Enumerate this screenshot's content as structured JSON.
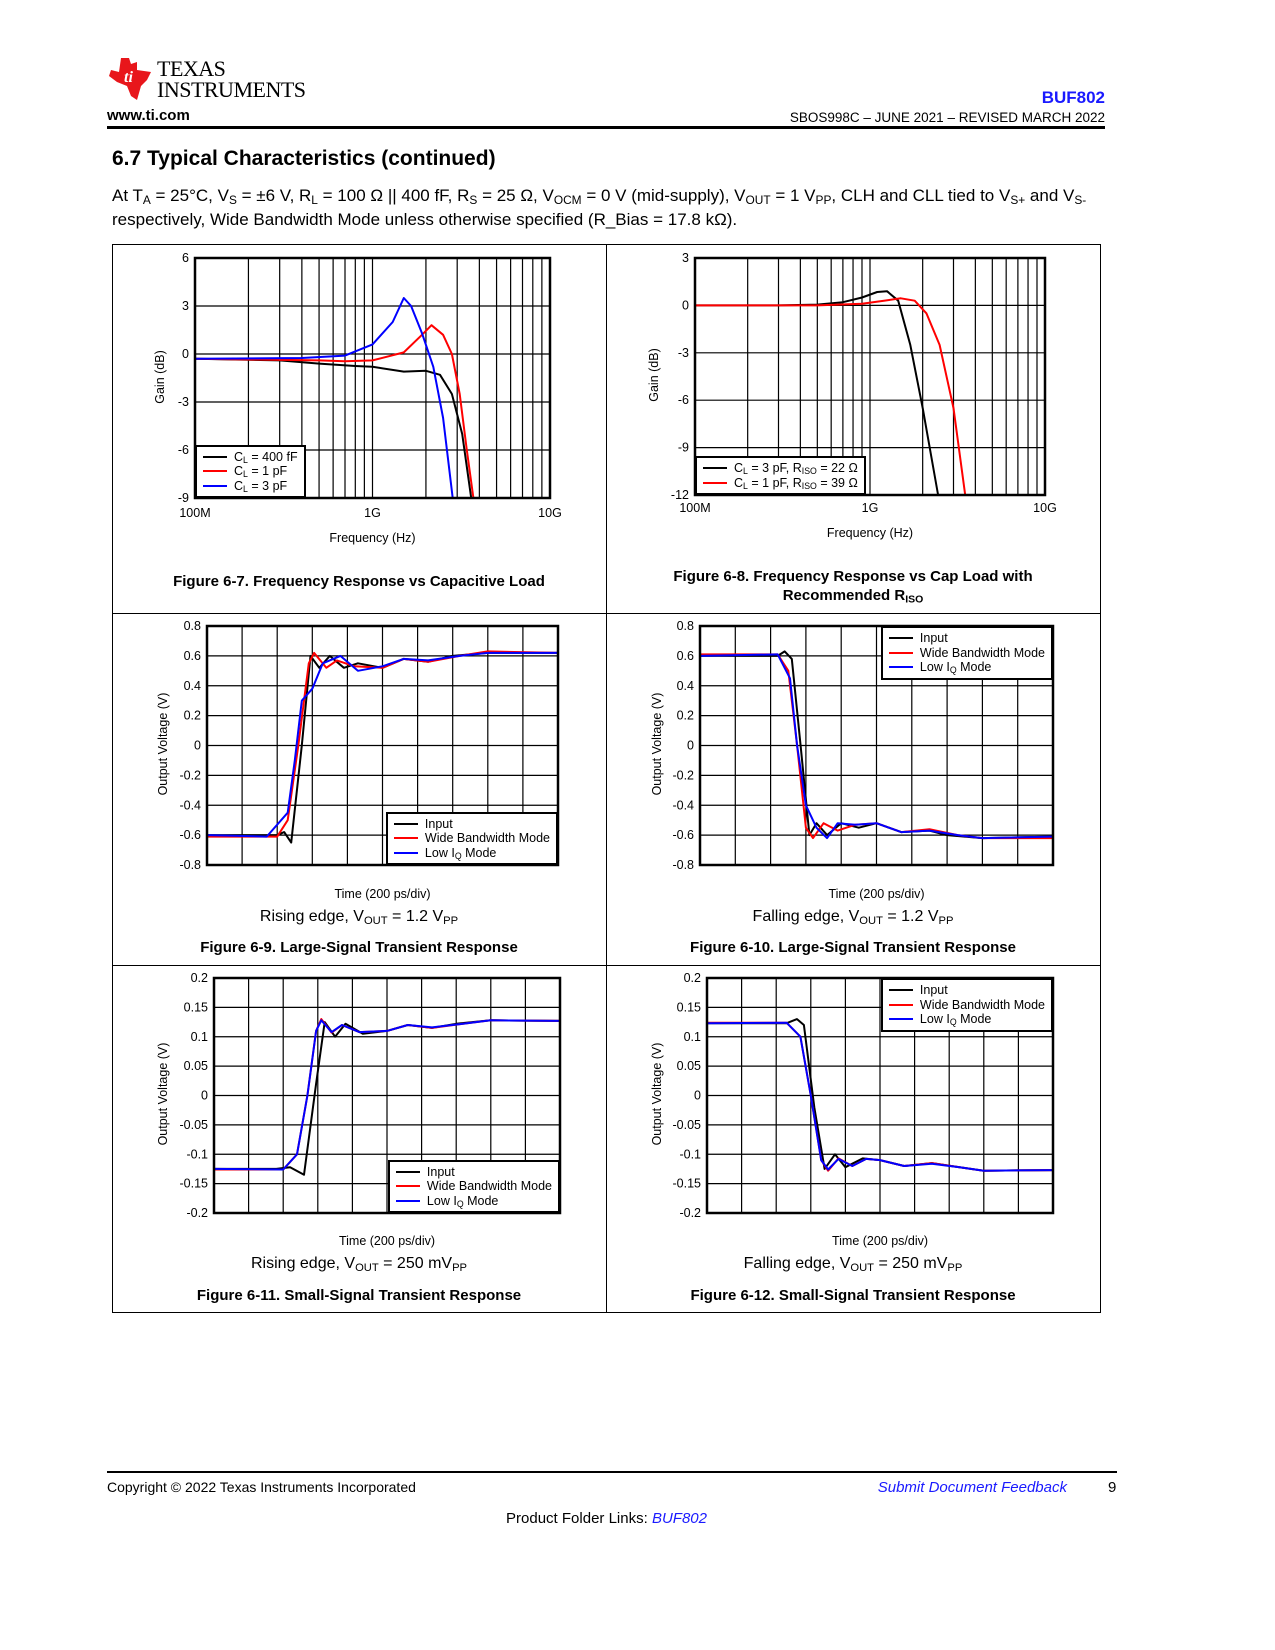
{
  "header": {
    "logo_text_1": "Texas",
    "logo_text_2": "Instruments",
    "website": "www.ti.com",
    "part_number": "BUF802",
    "doc_info": "SBOS998C – JUNE 2021 – REVISED MARCH 2022"
  },
  "section_title": "6.7 Typical Characteristics (continued)",
  "conditions_parts": [
    "At T",
    "A",
    " = 25°C, V",
    "S",
    " = ±6 V, R",
    "L",
    " = 100 Ω || 400 fF, R",
    "S",
    " = 25 Ω, V",
    "OCM",
    " = 0 V (mid-supply), V",
    "OUT",
    " = 1 V",
    "PP",
    ", CLH and CLL tied to V",
    "S+",
    " and V",
    "S-",
    " respectively, Wide Bandwidth Mode unless otherwise specified (R_Bias = 17.8 kΩ)."
  ],
  "chart_data": [
    {
      "type": "line",
      "title": "Figure 6-7. Frequency Response vs Capacitive Load",
      "xlabel": "Frequency (Hz)",
      "ylabel": "Gain (dB)",
      "xscale": "log",
      "xlim_mhz": [
        100,
        10000
      ],
      "ylim": [
        -9,
        6
      ],
      "grid": true,
      "xtick_values_mhz": [
        100,
        1000,
        10000
      ],
      "xtick_labels": [
        "100M",
        "1G",
        "10G"
      ],
      "ytick_values": [
        6,
        3,
        0,
        -3,
        -6,
        -9
      ],
      "ytick_labels": [
        "6",
        "3",
        "0",
        "-3",
        "-6",
        "-9"
      ],
      "legend_position": "bottom-left",
      "series": [
        {
          "label_parts": [
            "C",
            "L",
            " = 400 fF"
          ],
          "color": "#000000",
          "x": [
            100,
            300,
            500,
            800,
            1000,
            1500,
            2000,
            2400,
            2800,
            3200,
            3600
          ],
          "y": [
            -0.3,
            -0.4,
            -0.6,
            -0.75,
            -0.8,
            -1.1,
            -1.05,
            -1.3,
            -2.5,
            -5,
            -9
          ]
        },
        {
          "label_parts": [
            "C",
            "L",
            " = 1 pF"
          ],
          "color": "#ff0000",
          "x": [
            100,
            500,
            700,
            1000,
            1500,
            1900,
            2150,
            2500,
            2800,
            3100,
            3400,
            3700
          ],
          "y": [
            -0.3,
            -0.4,
            -0.45,
            -0.4,
            0.1,
            1.2,
            1.8,
            1.2,
            0,
            -2.5,
            -6,
            -9
          ]
        },
        {
          "label_parts": [
            "C",
            "L",
            " = 3 pF"
          ],
          "color": "#0000ff",
          "x": [
            100,
            400,
            700,
            1000,
            1300,
            1500,
            1650,
            1900,
            2200,
            2500,
            2830
          ],
          "y": [
            -0.3,
            -0.25,
            -0.1,
            0.6,
            2,
            3.5,
            3,
            1.3,
            -0.8,
            -4,
            -9
          ]
        }
      ]
    },
    {
      "type": "line",
      "title": "Figure 6-8. Frequency Response vs Cap Load with Recommended R",
      "title_sub": "ISO",
      "xlabel": "Frequency (Hz)",
      "ylabel": "Gain (dB)",
      "xscale": "log",
      "xlim_mhz": [
        100,
        10000
      ],
      "ylim": [
        -12,
        3
      ],
      "grid": true,
      "xtick_values_mhz": [
        100,
        1000,
        10000
      ],
      "xtick_labels": [
        "100M",
        "1G",
        "10G"
      ],
      "ytick_values": [
        3,
        0,
        -3,
        -6,
        -9,
        -12
      ],
      "ytick_labels": [
        "3",
        "0",
        "-3",
        "-6",
        "-9",
        "-12"
      ],
      "legend_position": "bottom-left",
      "series": [
        {
          "label_parts": [
            "C",
            "L",
            " = 3 pF, R",
            "ISO",
            " = 22 Ω"
          ],
          "color": "#000000",
          "x": [
            100,
            300,
            500,
            700,
            900,
            1100,
            1250,
            1450,
            1700,
            2000,
            2450
          ],
          "y": [
            0,
            0,
            0.05,
            0.2,
            0.5,
            0.85,
            0.9,
            0.3,
            -2.5,
            -6.5,
            -12
          ]
        },
        {
          "label_parts": [
            "C",
            "L",
            " = 1 pF, R",
            "ISO",
            " = 39 Ω"
          ],
          "color": "#ff0000",
          "x": [
            100,
            500,
            900,
            1200,
            1500,
            1800,
            2100,
            2500,
            3000,
            3500
          ],
          "y": [
            0,
            0,
            0.1,
            0.3,
            0.45,
            0.3,
            -0.5,
            -2.5,
            -6.5,
            -12
          ]
        }
      ]
    },
    {
      "type": "line",
      "title": "Figure 6-9. Large-Signal Transient Response",
      "subtitle_parts": [
        "Rising edge, V",
        "OUT",
        " = 1.2 V",
        "PP"
      ],
      "xlabel": "Time (200 ps/div)",
      "ylabel": "Output Voltage (V)",
      "xscale": "linear",
      "xlim_div": [
        0,
        10
      ],
      "ylim": [
        -0.8,
        0.8
      ],
      "grid": true,
      "x_divisions": 10,
      "ytick_values": [
        0.8,
        0.6,
        0.4,
        0.2,
        0,
        -0.2,
        -0.4,
        -0.6,
        -0.8
      ],
      "ytick_labels": [
        "0.8",
        "0.6",
        "0.4",
        "0.2",
        "0",
        "-0.2",
        "-0.4",
        "-0.6",
        "-0.8"
      ],
      "legend_position": "bottom-right",
      "series": [
        {
          "label_parts": [
            "Input"
          ],
          "color": "#000000",
          "x": [
            0,
            2,
            2.2,
            2.4,
            2.7,
            2.95,
            3.2,
            3.5,
            3.9,
            4.3,
            5,
            5.6,
            6.3,
            7,
            8,
            10
          ],
          "y": [
            -0.6,
            -0.6,
            -0.58,
            -0.65,
            0,
            0.6,
            0.52,
            0.6,
            0.52,
            0.55,
            0.52,
            0.58,
            0.56,
            0.6,
            0.62,
            0.62
          ]
        },
        {
          "label_parts": [
            "Wide Bandwidth Mode"
          ],
          "color": "#ff0000",
          "x": [
            0,
            2,
            2.3,
            2.6,
            2.9,
            3.05,
            3.4,
            3.7,
            4.2,
            5,
            5.6,
            6.3,
            7.2,
            8,
            10
          ],
          "y": [
            -0.61,
            -0.61,
            -0.5,
            0,
            0.55,
            0.62,
            0.52,
            0.57,
            0.53,
            0.52,
            0.58,
            0.56,
            0.6,
            0.63,
            0.62
          ]
        },
        {
          "label_parts": [
            "Low I",
            "Q",
            " Mode"
          ],
          "color": "#0000ff",
          "x": [
            0,
            1.7,
            2.3,
            2.5,
            2.7,
            3,
            3.3,
            3.8,
            4.3,
            5,
            5.6,
            6.3,
            7.2,
            8,
            10
          ],
          "y": [
            -0.6,
            -0.61,
            -0.45,
            -0.1,
            0.3,
            0.38,
            0.55,
            0.6,
            0.5,
            0.53,
            0.58,
            0.57,
            0.6,
            0.62,
            0.62
          ]
        }
      ]
    },
    {
      "type": "line",
      "title": "Figure 6-10. Large-Signal Transient Response",
      "subtitle_parts": [
        "Falling edge, V",
        "OUT",
        " = 1.2 V",
        "PP"
      ],
      "xlabel": "Time (200 ps/div)",
      "ylabel": "Output Voltage (V)",
      "xscale": "linear",
      "xlim_div": [
        0,
        10
      ],
      "ylim": [
        -0.8,
        0.8
      ],
      "grid": true,
      "x_divisions": 10,
      "ytick_values": [
        0.8,
        0.6,
        0.4,
        0.2,
        0,
        -0.2,
        -0.4,
        -0.6,
        -0.8
      ],
      "ytick_labels": [
        "0.8",
        "0.6",
        "0.4",
        "0.2",
        "0",
        "-0.2",
        "-0.4",
        "-0.6",
        "-0.8"
      ],
      "legend_position": "top-right",
      "series": [
        {
          "label_parts": [
            "Input"
          ],
          "color": "#000000",
          "x": [
            0,
            2.2,
            2.4,
            2.6,
            2.85,
            3.1,
            3.3,
            3.6,
            4,
            4.5,
            5,
            5.7,
            6.5,
            7,
            8,
            10
          ],
          "y": [
            0.6,
            0.6,
            0.63,
            0.58,
            0,
            -0.6,
            -0.52,
            -0.6,
            -0.52,
            -0.55,
            -0.52,
            -0.58,
            -0.57,
            -0.6,
            -0.62,
            -0.61
          ]
        },
        {
          "label_parts": [
            "Wide Bandwidth Mode"
          ],
          "color": "#ff0000",
          "x": [
            0,
            2.2,
            2.5,
            2.75,
            3,
            3.2,
            3.5,
            3.9,
            4.4,
            5,
            5.7,
            6.5,
            7.3,
            8,
            10
          ],
          "y": [
            0.61,
            0.61,
            0.5,
            0,
            -0.55,
            -0.62,
            -0.52,
            -0.57,
            -0.53,
            -0.52,
            -0.58,
            -0.56,
            -0.6,
            -0.62,
            -0.62
          ]
        },
        {
          "label_parts": [
            "Low I",
            "Q",
            " Mode"
          ],
          "color": "#0000ff",
          "x": [
            0,
            2.2,
            2.55,
            2.75,
            3,
            3.3,
            3.6,
            3.9,
            4.4,
            5,
            5.7,
            6.5,
            7.3,
            8,
            10
          ],
          "y": [
            0.6,
            0.61,
            0.45,
            0,
            -0.4,
            -0.55,
            -0.62,
            -0.52,
            -0.53,
            -0.52,
            -0.58,
            -0.57,
            -0.6,
            -0.62,
            -0.61
          ]
        }
      ]
    },
    {
      "type": "line",
      "title": "Figure 6-11. Small-Signal Transient Response",
      "subtitle_parts": [
        "Rising edge, V",
        "OUT",
        " = 250 mV",
        "PP"
      ],
      "xlabel": "Time (200 ps/div)",
      "ylabel": "Output Voltage (V)",
      "xscale": "linear",
      "xlim_div": [
        0,
        10
      ],
      "ylim": [
        -0.2,
        0.2
      ],
      "grid": true,
      "x_divisions": 10,
      "ytick_values": [
        0.2,
        0.15,
        0.1,
        0.05,
        0,
        -0.05,
        -0.1,
        -0.15,
        -0.2
      ],
      "ytick_labels": [
        "0.2",
        "0.15",
        "0.1",
        "0.05",
        "0",
        "-0.05",
        "-0.1",
        "-0.15",
        "-0.2"
      ],
      "legend_position": "bottom-right",
      "series": [
        {
          "label_parts": [
            "Input"
          ],
          "color": "#000000",
          "x": [
            0,
            1.8,
            2.2,
            2.6,
            2.95,
            3.2,
            3.5,
            3.8,
            4.3,
            5,
            5.6,
            6.3,
            7,
            8,
            10
          ],
          "y": [
            -0.125,
            -0.125,
            -0.122,
            -0.135,
            0.02,
            0.125,
            0.1,
            0.122,
            0.105,
            0.11,
            0.12,
            0.115,
            0.122,
            0.128,
            0.127
          ]
        },
        {
          "label_parts": [
            "Wide Bandwidth Mode"
          ],
          "color": "#ff0000",
          "x": [
            0,
            2,
            2.4,
            2.7,
            2.95,
            3.1,
            3.4,
            3.7,
            4.2,
            5,
            5.6,
            6.3,
            7.2,
            8,
            10
          ],
          "y": [
            -0.126,
            -0.126,
            -0.1,
            0,
            0.11,
            0.13,
            0.107,
            0.12,
            0.108,
            0.11,
            0.12,
            0.115,
            0.122,
            0.128,
            0.127
          ]
        },
        {
          "label_parts": [
            "Low I",
            "Q",
            " Mode"
          ],
          "color": "#0000ff",
          "x": [
            0,
            2,
            2.4,
            2.7,
            2.95,
            3.1,
            3.4,
            3.7,
            4.2,
            5,
            5.6,
            6.3,
            7.2,
            8,
            10
          ],
          "y": [
            -0.125,
            -0.126,
            -0.1,
            0,
            0.11,
            0.128,
            0.108,
            0.12,
            0.108,
            0.11,
            0.12,
            0.116,
            0.122,
            0.128,
            0.127
          ]
        }
      ]
    },
    {
      "type": "line",
      "title": "Figure 6-12. Small-Signal Transient Response",
      "subtitle_parts": [
        "Falling edge, V",
        "OUT",
        " = 250 mV",
        "PP"
      ],
      "xlabel": "Time (200 ps/div)",
      "ylabel": "Output Voltage (V)",
      "xscale": "linear",
      "xlim_div": [
        0,
        10
      ],
      "ylim": [
        -0.2,
        0.2
      ],
      "grid": true,
      "x_divisions": 10,
      "ytick_values": [
        0.2,
        0.15,
        0.1,
        0.05,
        0,
        -0.05,
        -0.1,
        -0.15,
        -0.2
      ],
      "ytick_labels": [
        "0.2",
        "0.15",
        "0.1",
        "0.05",
        "0",
        "-0.05",
        "-0.1",
        "-0.15",
        "-0.2"
      ],
      "legend_position": "top-right",
      "series": [
        {
          "label_parts": [
            "Input"
          ],
          "color": "#000000",
          "x": [
            0,
            2.3,
            2.6,
            2.8,
            3.1,
            3.4,
            3.7,
            4,
            4.5,
            5,
            5.7,
            6.5,
            7.3,
            8,
            10
          ],
          "y": [
            0.123,
            0.123,
            0.13,
            0.12,
            -0.02,
            -0.125,
            -0.1,
            -0.122,
            -0.107,
            -0.11,
            -0.12,
            -0.115,
            -0.122,
            -0.128,
            -0.127
          ]
        },
        {
          "label_parts": [
            "Wide Bandwidth Mode"
          ],
          "color": "#ff0000",
          "x": [
            0,
            2.3,
            2.7,
            3,
            3.3,
            3.5,
            3.8,
            4.2,
            4.6,
            5,
            5.7,
            6.5,
            7.3,
            8,
            10
          ],
          "y": [
            0.124,
            0.124,
            0.1,
            0,
            -0.11,
            -0.128,
            -0.107,
            -0.12,
            -0.108,
            -0.11,
            -0.12,
            -0.115,
            -0.122,
            -0.128,
            -0.127
          ]
        },
        {
          "label_parts": [
            "Low I",
            "Q",
            " Mode"
          ],
          "color": "#0000ff",
          "x": [
            0,
            2.3,
            2.7,
            3,
            3.3,
            3.5,
            3.8,
            4.2,
            4.6,
            5,
            5.7,
            6.5,
            7.3,
            8,
            10
          ],
          "y": [
            0.123,
            0.124,
            0.1,
            0,
            -0.11,
            -0.126,
            -0.108,
            -0.12,
            -0.108,
            -0.11,
            -0.12,
            -0.116,
            -0.122,
            -0.128,
            -0.127
          ]
        }
      ]
    }
  ],
  "footer": {
    "copyright": "Copyright © 2022 Texas Instruments Incorporated",
    "feedback_link": "Submit Document Feedback",
    "page_number": "9",
    "product_folder_label": "Product Folder Links: ",
    "product_folder_link": "BUF802"
  }
}
